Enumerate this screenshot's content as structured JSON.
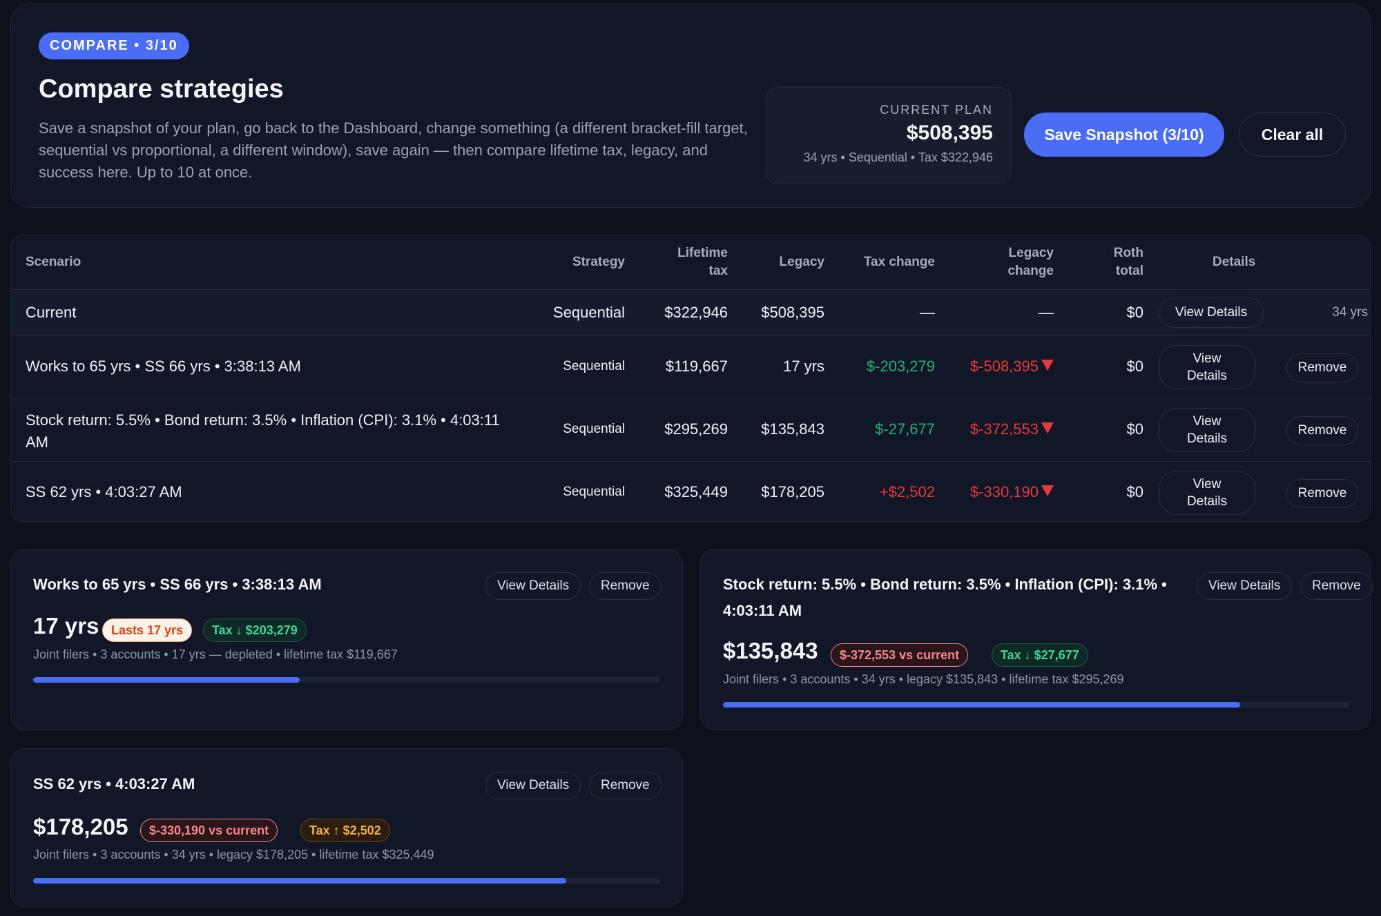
{
  "header": {
    "badge": "COMPARE • 3/10",
    "title": "Compare strategies",
    "description": "Save a snapshot of your plan, go back to the Dashboard, change something (a different bracket-fill target, sequential vs proportional, a different window), save again — then compare lifetime tax, legacy, and success here. Up to 10 at once.",
    "current_plan": {
      "label": "CURRENT PLAN",
      "value": "$508,395",
      "meta": "34 yrs • Sequential • Tax $322,946"
    },
    "save_label": "Save Snapshot (3/10)",
    "clear_label": "Clear all"
  },
  "table": {
    "headers": {
      "scenario": "Scenario",
      "strategy": "Strategy",
      "lifetime_tax_1": "Lifetime",
      "lifetime_tax_2": "tax",
      "legacy": "Legacy",
      "tax_change": "Tax change",
      "legacy_change_1": "Legacy",
      "legacy_change_2": "change",
      "roth_total_1": "Roth",
      "roth_total_2": "total",
      "details": "Details"
    },
    "current": {
      "scenario": "Current",
      "strategy": "Sequential",
      "lifetime_tax": "$322,946",
      "legacy": "$508,395",
      "tax_change": "—",
      "legacy_change": "—",
      "roth_total": "$0",
      "view_details": "View Details",
      "years": "34 yrs"
    },
    "rows": [
      {
        "scenario": "Works to 65 yrs • SS 66 yrs • 3:38:13 AM",
        "strategy": "Sequential",
        "lifetime_tax": "$119,667",
        "legacy": "17 yrs",
        "tax_change": "$-203,279",
        "legacy_change": "$-508,395",
        "roth_total": "$0",
        "view_1": "View",
        "view_2": "Details",
        "remove": "Remove"
      },
      {
        "scenario_1": "Stock return: 5.5% • Bond return: 3.5% • Inflation (CPI): 3.1% • 4:03:11",
        "scenario_2": "AM",
        "strategy": "Sequential",
        "lifetime_tax": "$295,269",
        "legacy": "$135,843",
        "tax_change": "$-27,677",
        "legacy_change": "$-372,553",
        "roth_total": "$0",
        "view_1": "View",
        "view_2": "Details",
        "remove": "Remove"
      },
      {
        "scenario": "SS 62 yrs • 4:03:27 AM",
        "strategy": "Sequential",
        "lifetime_tax": "$325,449",
        "legacy": "$178,205",
        "tax_change": "+$2,502",
        "legacy_change": "$-330,190",
        "roth_total": "$0",
        "view_1": "View",
        "view_2": "Details",
        "remove": "Remove"
      }
    ]
  },
  "cards": [
    {
      "title": "Works to 65 yrs • SS 66 yrs • 3:38:13 AM",
      "view_details": "View Details",
      "remove": "Remove",
      "value": "17 yrs",
      "chip_1": "Lasts 17 yrs",
      "chip_2": "Tax ↓ $203,279",
      "meta": "Joint filers • 3 accounts • 17 yrs — depleted • lifetime tax $119,667",
      "progress": 0.425
    },
    {
      "title_1": "Stock return: 5.5% • Bond return: 3.5% • Inflation (CPI): 3.1% •",
      "title_2": "4:03:11 AM",
      "view_details": "View Details",
      "remove": "Remove",
      "value": "$135,843",
      "chip_1": "$-372,553 vs current",
      "chip_2": "Tax ↓ $27,677",
      "meta": "Joint filers • 3 accounts • 34 yrs • legacy $135,843 • lifetime tax $295,269",
      "progress": 0.826
    },
    {
      "title": "SS 62 yrs • 4:03:27 AM",
      "view_details": "View Details",
      "remove": "Remove",
      "value": "$178,205",
      "chip_1": "$-330,190 vs current",
      "chip_2": "Tax ↑ $2,502",
      "meta": "Joint filers • 3 accounts • 34 yrs • legacy $178,205 • lifetime tax $325,449",
      "progress": 0.85
    }
  ],
  "colors": {
    "accent": "#4b6cf5",
    "background": "#0c111b",
    "card": "#111726",
    "positive": "#22b07a",
    "negative": "#e8383d"
  }
}
